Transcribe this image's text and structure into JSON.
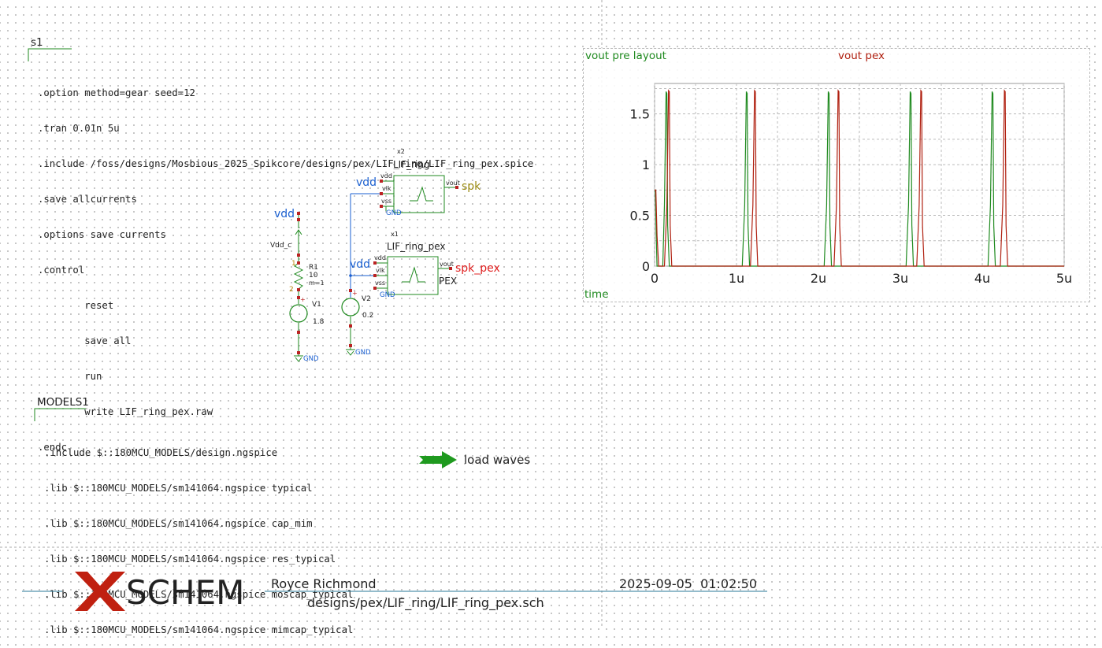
{
  "spice_block": {
    "name": "s1",
    "lines": [
      ".option method=gear seed=12",
      ".tran 0.01n 5u",
      ".include /foss/designs/Mosbious_2025_Spikcore/designs/pex/LIF_ring/LIF_ring_pex.spice",
      ".save allcurrents",
      ".options save currents",
      ".control",
      "        reset",
      "        save all",
      "        run",
      "        write LIF_ring_pex.raw",
      ".endc"
    ]
  },
  "models_block": {
    "name": "MODELS1",
    "lines": [
      ".include $::180MCU_MODELS/design.ngspice",
      ".lib $::180MCU_MODELS/sm141064.ngspice typical",
      ".lib $::180MCU_MODELS/sm141064.ngspice cap_mim",
      ".lib $::180MCU_MODELS/sm141064.ngspice res_typical",
      ".lib $::180MCU_MODELS/sm141064.ngspice moscap_typical",
      ".lib $::180MCU_MODELS/sm141064.ngspice mimcap_typical"
    ]
  },
  "schematic": {
    "supply_net": "vdd",
    "vdd_c_label": "Vdd_c",
    "r1": {
      "name": "R1",
      "value": "10",
      "mult": "m=1",
      "pin1": "1",
      "pin2": "2"
    },
    "v1": {
      "name": "V1",
      "value": "1.8"
    },
    "v2": {
      "name": "V2",
      "value": "0.2"
    },
    "gnd": "GND",
    "x2": {
      "inst": "x2",
      "cell": "LIF_ring",
      "pins": [
        "vdd",
        "vlk",
        "vss"
      ],
      "out_pin": "vout",
      "out_net": "spk"
    },
    "x1": {
      "inst": "x1",
      "cell": "LIF_ring_pex",
      "pins": [
        "vdd",
        "vlk",
        "vss"
      ],
      "out_pin": "vout",
      "out_net": "spk_pex",
      "tag": "PEX"
    }
  },
  "load_waves": {
    "label": "load waves",
    "color": "#1f9a1f"
  },
  "graph": {
    "legend": [
      {
        "name": "vout pre layout",
        "color": "#1f8a1f"
      },
      {
        "name": "vout pex",
        "color": "#b02010"
      }
    ],
    "xlabel": "time"
  },
  "chart_data": {
    "type": "line",
    "x_ticks": [
      "0",
      "1u",
      "2u",
      "3u",
      "4u",
      "5u"
    ],
    "y_ticks": [
      "0",
      "0.5",
      "1",
      "1.5"
    ],
    "xlim": [
      0,
      5
    ],
    "ylim": [
      0,
      1.8
    ],
    "x_unit": "us",
    "grid": true,
    "series": [
      {
        "name": "vout pre layout",
        "color": "#1f8a1f",
        "x": [
          0,
          0.01,
          0.02,
          0.03,
          0.1,
          0.12,
          0.14,
          0.15,
          0.16,
          0.18,
          0.2,
          1.07,
          1.1,
          1.12,
          1.13,
          1.14,
          1.16,
          1.18,
          2.07,
          2.1,
          2.12,
          2.13,
          2.14,
          2.16,
          2.18,
          3.07,
          3.1,
          3.12,
          3.13,
          3.14,
          3.16,
          3.18,
          4.07,
          4.1,
          4.12,
          4.13,
          4.14,
          4.16,
          4.18,
          5
        ],
        "y": [
          0.75,
          0.75,
          0.3,
          0,
          0,
          0.6,
          1.72,
          1.7,
          0.4,
          0,
          0,
          0,
          0.6,
          1.72,
          1.7,
          0.4,
          0,
          0,
          0,
          0.6,
          1.72,
          1.7,
          0.4,
          0,
          0,
          0,
          0.6,
          1.72,
          1.7,
          0.4,
          0,
          0,
          0,
          0.6,
          1.72,
          1.7,
          0.4,
          0,
          0,
          0
        ]
      },
      {
        "name": "vout pex",
        "color": "#b02010",
        "x": [
          0,
          0.015,
          0.03,
          0.05,
          0.12,
          0.15,
          0.17,
          0.18,
          0.19,
          0.21,
          0.24,
          1.17,
          1.2,
          1.22,
          1.23,
          1.24,
          1.26,
          1.29,
          2.19,
          2.22,
          2.24,
          2.25,
          2.26,
          2.28,
          2.31,
          3.2,
          3.23,
          3.25,
          3.26,
          3.27,
          3.29,
          3.32,
          4.22,
          4.25,
          4.27,
          4.28,
          4.29,
          4.31,
          4.34,
          5
        ],
        "y": [
          0.75,
          0.75,
          0.3,
          0,
          0,
          0.6,
          1.73,
          1.72,
          0.4,
          0,
          0,
          0,
          0.6,
          1.73,
          1.72,
          0.4,
          0,
          0,
          0,
          0.6,
          1.73,
          1.72,
          0.4,
          0,
          0,
          0,
          0.6,
          1.73,
          1.72,
          0.4,
          0,
          0,
          0,
          0.6,
          1.73,
          1.72,
          0.4,
          0,
          0,
          0
        ]
      }
    ]
  },
  "title_block": {
    "logo_text": "SCHEM",
    "author": "Royce Richmond",
    "date": "2025-09-05  01:02:50",
    "file": "designs/pex/LIF_ring/LIF_ring_pex.sch"
  }
}
